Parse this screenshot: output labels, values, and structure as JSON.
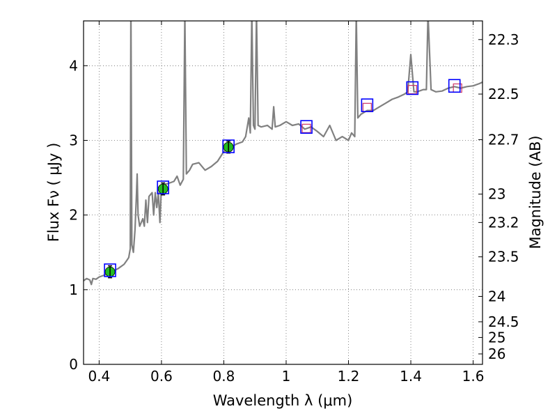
{
  "chart_data": {
    "type": "line",
    "xlabel": "Wavelength  λ (μm)",
    "ylabel": "Flux  Fν  ( μJy )",
    "ylabel_right": "Magnitude (AB)",
    "xlim": [
      0.35,
      1.63
    ],
    "ylim": [
      0,
      4.6
    ],
    "grid": true,
    "x_ticks": [
      0.4,
      0.6,
      0.8,
      1.0,
      1.2,
      1.4,
      1.6
    ],
    "x_tick_labels": [
      "0.4",
      "0.6",
      "0.8",
      "1",
      "1.2",
      "1.4",
      "1.6"
    ],
    "y_ticks": [
      0,
      1,
      2,
      3,
      4
    ],
    "y_tick_labels": [
      "0",
      "1",
      "2",
      "3",
      "4"
    ],
    "right_ticks": [
      {
        "label": "22.3",
        "flux": 4.35
      },
      {
        "label": "22.5",
        "flux": 3.62
      },
      {
        "label": "22.7",
        "flux": 3.01
      },
      {
        "label": "23",
        "flux": 2.28
      },
      {
        "label": "23.2",
        "flux": 1.9
      },
      {
        "label": "23.5",
        "flux": 1.44
      },
      {
        "label": "24",
        "flux": 0.91
      },
      {
        "label": "24.5",
        "flux": 0.57
      },
      {
        "label": "25",
        "flux": 0.36
      },
      {
        "label": "26",
        "flux": 0.14
      }
    ],
    "colors": {
      "spectrum": "#808080",
      "phot_fill": "#22bb22",
      "box": "#0000ff",
      "model_box": "#cc3366",
      "grid": "#666666"
    },
    "spectrum": [
      [
        0.35,
        1.12
      ],
      [
        0.36,
        1.15
      ],
      [
        0.37,
        1.13
      ],
      [
        0.375,
        1.07
      ],
      [
        0.38,
        1.15
      ],
      [
        0.39,
        1.14
      ],
      [
        0.4,
        1.17
      ],
      [
        0.42,
        1.2
      ],
      [
        0.44,
        1.24
      ],
      [
        0.46,
        1.28
      ],
      [
        0.48,
        1.34
      ],
      [
        0.49,
        1.4
      ],
      [
        0.495,
        1.43
      ],
      [
        0.5,
        1.55
      ],
      [
        0.502,
        4.9
      ],
      [
        0.505,
        1.6
      ],
      [
        0.51,
        1.5
      ],
      [
        0.515,
        1.8
      ],
      [
        0.52,
        2.3
      ],
      [
        0.522,
        2.55
      ],
      [
        0.525,
        2.0
      ],
      [
        0.53,
        1.85
      ],
      [
        0.54,
        1.95
      ],
      [
        0.545,
        1.85
      ],
      [
        0.55,
        2.2
      ],
      [
        0.555,
        1.9
      ],
      [
        0.56,
        2.25
      ],
      [
        0.57,
        2.3
      ],
      [
        0.575,
        2.0
      ],
      [
        0.58,
        2.3
      ],
      [
        0.585,
        2.1
      ],
      [
        0.59,
        2.3
      ],
      [
        0.595,
        1.9
      ],
      [
        0.6,
        2.4
      ],
      [
        0.62,
        2.42
      ],
      [
        0.64,
        2.45
      ],
      [
        0.65,
        2.52
      ],
      [
        0.66,
        2.4
      ],
      [
        0.67,
        2.48
      ],
      [
        0.675,
        4.7
      ],
      [
        0.68,
        2.55
      ],
      [
        0.69,
        2.6
      ],
      [
        0.7,
        2.68
      ],
      [
        0.72,
        2.7
      ],
      [
        0.74,
        2.6
      ],
      [
        0.76,
        2.65
      ],
      [
        0.78,
        2.72
      ],
      [
        0.8,
        2.85
      ],
      [
        0.82,
        2.9
      ],
      [
        0.84,
        2.95
      ],
      [
        0.86,
        2.98
      ],
      [
        0.87,
        3.05
      ],
      [
        0.88,
        3.3
      ],
      [
        0.885,
        3.1
      ],
      [
        0.89,
        4.7
      ],
      [
        0.895,
        3.2
      ],
      [
        0.9,
        3.15
      ],
      [
        0.905,
        4.7
      ],
      [
        0.91,
        3.2
      ],
      [
        0.92,
        3.18
      ],
      [
        0.94,
        3.2
      ],
      [
        0.955,
        3.15
      ],
      [
        0.96,
        3.45
      ],
      [
        0.965,
        3.18
      ],
      [
        0.98,
        3.2
      ],
      [
        1.0,
        3.25
      ],
      [
        1.02,
        3.2
      ],
      [
        1.04,
        3.22
      ],
      [
        1.06,
        3.15
      ],
      [
        1.08,
        3.18
      ],
      [
        1.1,
        3.12
      ],
      [
        1.12,
        3.05
      ],
      [
        1.14,
        3.2
      ],
      [
        1.16,
        3.0
      ],
      [
        1.18,
        3.05
      ],
      [
        1.2,
        3.0
      ],
      [
        1.21,
        3.1
      ],
      [
        1.22,
        3.05
      ],
      [
        1.225,
        4.7
      ],
      [
        1.23,
        3.3
      ],
      [
        1.24,
        3.35
      ],
      [
        1.26,
        3.4
      ],
      [
        1.28,
        3.4
      ],
      [
        1.3,
        3.45
      ],
      [
        1.32,
        3.5
      ],
      [
        1.34,
        3.55
      ],
      [
        1.36,
        3.58
      ],
      [
        1.38,
        3.62
      ],
      [
        1.39,
        3.65
      ],
      [
        1.4,
        4.15
      ],
      [
        1.41,
        3.65
      ],
      [
        1.42,
        3.65
      ],
      [
        1.44,
        3.68
      ],
      [
        1.45,
        3.68
      ],
      [
        1.455,
        4.7
      ],
      [
        1.465,
        3.68
      ],
      [
        1.48,
        3.65
      ],
      [
        1.5,
        3.66
      ],
      [
        1.52,
        3.7
      ],
      [
        1.54,
        3.72
      ],
      [
        1.56,
        3.7
      ],
      [
        1.58,
        3.72
      ],
      [
        1.6,
        3.73
      ],
      [
        1.62,
        3.76
      ],
      [
        1.63,
        3.78
      ]
    ],
    "photometry": [
      {
        "x": 0.435,
        "y": 1.24,
        "err": 0.08
      },
      {
        "x": 0.605,
        "y": 2.35,
        "err": 0.08
      },
      {
        "x": 0.815,
        "y": 2.91,
        "err": 0.08
      }
    ],
    "model_points": [
      {
        "x": 0.435,
        "y": 1.26
      },
      {
        "x": 0.605,
        "y": 2.37
      },
      {
        "x": 0.815,
        "y": 2.92
      },
      {
        "x": 1.065,
        "y": 3.18
      },
      {
        "x": 1.26,
        "y": 3.47
      },
      {
        "x": 1.405,
        "y": 3.7
      },
      {
        "x": 1.54,
        "y": 3.73
      }
    ],
    "model_inner_points": [
      {
        "x": 1.065,
        "y": 3.16
      },
      {
        "x": 1.26,
        "y": 3.44
      },
      {
        "x": 1.405,
        "y": 3.68
      },
      {
        "x": 1.55,
        "y": 3.7
      }
    ]
  }
}
